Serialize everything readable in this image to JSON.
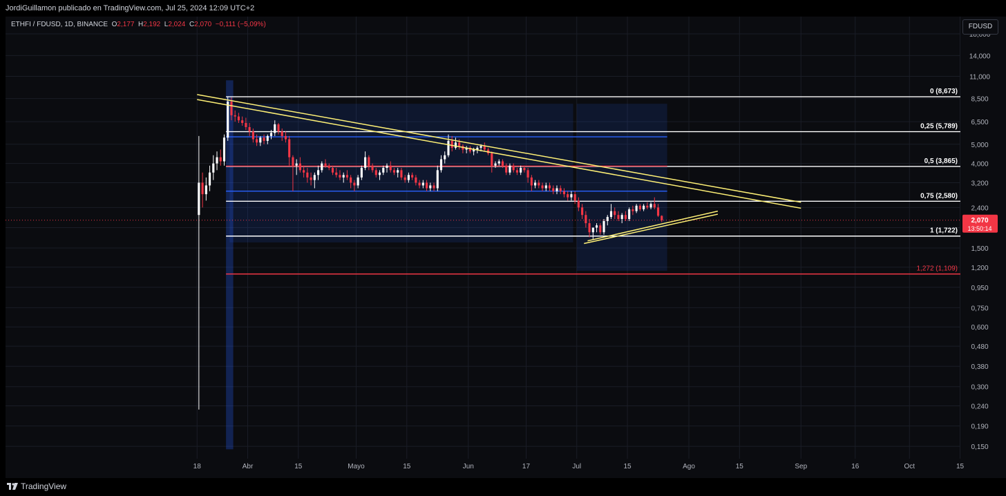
{
  "header": {
    "publisher": "JordiGuillamon publicado en TradingView.com, Jul 25, 2024 12:09 UTC+2"
  },
  "symbol": {
    "pair": "ETHFI / FDUSD, 1D, BINANCE",
    "open_label": "O",
    "open": "2,177",
    "high_label": "H",
    "high": "2,192",
    "low_label": "L",
    "low": "2,024",
    "close_label": "C",
    "close": "2,070",
    "change": "−0,111 (−5,09%)"
  },
  "currency_button": "FDUSD",
  "footer": {
    "brand": "TradingView"
  },
  "colors": {
    "up": "#ffffff",
    "down": "#f23645",
    "fib": "#ffffff",
    "fib_ext": "#f23645",
    "trend": "#fff176",
    "channel": "#2962ff",
    "price_line": "#f23645"
  },
  "chart_data": {
    "type": "candlestick",
    "y_scale": "log",
    "ylim": [
      0.13,
      22
    ],
    "y_ticks": [
      "18,000",
      "14,000",
      "11,000",
      "8,500",
      "6,500",
      "5,000",
      "4,000",
      "3,200",
      "2,400",
      "1,900",
      "1,500",
      "1,200",
      "0,950",
      "0,750",
      "0,600",
      "0,480",
      "0,380",
      "0,300",
      "0,240",
      "0,190",
      "0,150"
    ],
    "y_tick_values": [
      18,
      14,
      11,
      8.5,
      6.5,
      5,
      4,
      3.2,
      2.4,
      1.9,
      1.5,
      1.2,
      0.95,
      0.75,
      0.6,
      0.48,
      0.38,
      0.3,
      0.24,
      0.19,
      0.15
    ],
    "x_range": [
      "2024-03-17",
      "2024-10-17"
    ],
    "x_ticks": [
      {
        "label": "18",
        "date": "2024-03-18"
      },
      {
        "label": "Abr",
        "date": "2024-04-01"
      },
      {
        "label": "15",
        "date": "2024-04-15"
      },
      {
        "label": "Mayo",
        "date": "2024-05-01"
      },
      {
        "label": "15",
        "date": "2024-05-15"
      },
      {
        "label": "Jun",
        "date": "2024-06-01"
      },
      {
        "label": "17",
        "date": "2024-06-17"
      },
      {
        "label": "Jul",
        "date": "2024-07-01"
      },
      {
        "label": "15",
        "date": "2024-07-15"
      },
      {
        "label": "Ago",
        "date": "2024-08-01"
      },
      {
        "label": "15",
        "date": "2024-08-15"
      },
      {
        "label": "Sep",
        "date": "2024-09-01"
      },
      {
        "label": "16",
        "date": "2024-09-16"
      },
      {
        "label": "Oct",
        "date": "2024-10-01"
      },
      {
        "label": "15",
        "date": "2024-10-15"
      }
    ],
    "current_price": "2,070",
    "countdown": "13:50:14",
    "fib_levels": [
      {
        "label": "0 (8,673)",
        "value": 8.673
      },
      {
        "label": "0,25 (5,789)",
        "value": 5.789
      },
      {
        "label": "0,5 (3,865)",
        "value": 3.865
      },
      {
        "label": "0,75 (2,580)",
        "value": 2.58
      },
      {
        "label": "1 (1,722)",
        "value": 1.722
      },
      {
        "label": "1,272 (1,109)",
        "value": 1.109,
        "ext": true
      }
    ],
    "candles": [
      {
        "d": "2024-03-18",
        "o": 2.2,
        "h": 5.5,
        "l": 0.23,
        "c": 3.2
      },
      {
        "d": "2024-03-19",
        "o": 3.2,
        "h": 3.6,
        "l": 2.4,
        "c": 2.8
      },
      {
        "d": "2024-03-20",
        "o": 2.8,
        "h": 3.4,
        "l": 2.6,
        "c": 3.1
      },
      {
        "d": "2024-03-21",
        "o": 3.1,
        "h": 3.9,
        "l": 2.9,
        "c": 3.6
      },
      {
        "d": "2024-03-22",
        "o": 3.6,
        "h": 4.4,
        "l": 3.3,
        "c": 4.0
      },
      {
        "d": "2024-03-23",
        "o": 4.0,
        "h": 4.6,
        "l": 3.7,
        "c": 4.3
      },
      {
        "d": "2024-03-24",
        "o": 4.3,
        "h": 4.7,
        "l": 3.9,
        "c": 4.1
      },
      {
        "d": "2024-03-25",
        "o": 4.1,
        "h": 5.6,
        "l": 3.9,
        "c": 5.4
      },
      {
        "d": "2024-03-26",
        "o": 5.4,
        "h": 8.7,
        "l": 5.2,
        "c": 8.2
      },
      {
        "d": "2024-03-27",
        "o": 8.2,
        "h": 8.6,
        "l": 6.6,
        "c": 7.0
      },
      {
        "d": "2024-03-28",
        "o": 7.0,
        "h": 7.4,
        "l": 6.5,
        "c": 6.9
      },
      {
        "d": "2024-03-29",
        "o": 6.9,
        "h": 7.2,
        "l": 6.4,
        "c": 6.6
      },
      {
        "d": "2024-03-30",
        "o": 6.6,
        "h": 6.9,
        "l": 6.2,
        "c": 6.4
      },
      {
        "d": "2024-03-31",
        "o": 6.4,
        "h": 6.8,
        "l": 5.9,
        "c": 6.1
      },
      {
        "d": "2024-04-01",
        "o": 6.1,
        "h": 6.4,
        "l": 5.5,
        "c": 5.8
      },
      {
        "d": "2024-04-02",
        "o": 5.8,
        "h": 6.0,
        "l": 5.1,
        "c": 5.3
      },
      {
        "d": "2024-04-03",
        "o": 5.3,
        "h": 5.6,
        "l": 4.9,
        "c": 5.1
      },
      {
        "d": "2024-04-04",
        "o": 5.1,
        "h": 5.5,
        "l": 4.9,
        "c": 5.4
      },
      {
        "d": "2024-04-05",
        "o": 5.4,
        "h": 5.6,
        "l": 5.0,
        "c": 5.2
      },
      {
        "d": "2024-04-06",
        "o": 5.2,
        "h": 5.6,
        "l": 5.0,
        "c": 5.5
      },
      {
        "d": "2024-04-07",
        "o": 5.5,
        "h": 5.9,
        "l": 5.3,
        "c": 5.7
      },
      {
        "d": "2024-04-08",
        "o": 5.7,
        "h": 6.6,
        "l": 5.5,
        "c": 6.3
      },
      {
        "d": "2024-04-09",
        "o": 6.3,
        "h": 6.4,
        "l": 5.6,
        "c": 5.8
      },
      {
        "d": "2024-04-10",
        "o": 5.8,
        "h": 6.0,
        "l": 5.2,
        "c": 5.5
      },
      {
        "d": "2024-04-11",
        "o": 5.5,
        "h": 5.8,
        "l": 5.1,
        "c": 5.3
      },
      {
        "d": "2024-04-12",
        "o": 5.3,
        "h": 5.5,
        "l": 3.9,
        "c": 4.3
      },
      {
        "d": "2024-04-13",
        "o": 4.3,
        "h": 4.4,
        "l": 2.9,
        "c": 3.9
      },
      {
        "d": "2024-04-14",
        "o": 3.9,
        "h": 4.2,
        "l": 3.5,
        "c": 4.0
      },
      {
        "d": "2024-04-15",
        "o": 4.0,
        "h": 4.3,
        "l": 3.6,
        "c": 3.7
      },
      {
        "d": "2024-04-16",
        "o": 3.7,
        "h": 3.9,
        "l": 3.4,
        "c": 3.6
      },
      {
        "d": "2024-04-17",
        "o": 3.6,
        "h": 3.8,
        "l": 3.2,
        "c": 3.4
      },
      {
        "d": "2024-04-18",
        "o": 3.4,
        "h": 3.6,
        "l": 3.1,
        "c": 3.3
      },
      {
        "d": "2024-04-19",
        "o": 3.3,
        "h": 3.6,
        "l": 3.0,
        "c": 3.5
      },
      {
        "d": "2024-04-20",
        "o": 3.5,
        "h": 3.9,
        "l": 3.3,
        "c": 3.7
      },
      {
        "d": "2024-04-21",
        "o": 3.7,
        "h": 4.1,
        "l": 3.6,
        "c": 4.0
      },
      {
        "d": "2024-04-22",
        "o": 4.0,
        "h": 4.2,
        "l": 3.8,
        "c": 3.9
      },
      {
        "d": "2024-04-23",
        "o": 3.9,
        "h": 4.0,
        "l": 3.7,
        "c": 3.8
      },
      {
        "d": "2024-04-24",
        "o": 3.8,
        "h": 3.9,
        "l": 3.5,
        "c": 3.6
      },
      {
        "d": "2024-04-25",
        "o": 3.6,
        "h": 3.8,
        "l": 3.4,
        "c": 3.5
      },
      {
        "d": "2024-04-26",
        "o": 3.5,
        "h": 3.7,
        "l": 3.3,
        "c": 3.4
      },
      {
        "d": "2024-04-27",
        "o": 3.4,
        "h": 3.6,
        "l": 3.2,
        "c": 3.5
      },
      {
        "d": "2024-04-28",
        "o": 3.5,
        "h": 3.7,
        "l": 3.3,
        "c": 3.4
      },
      {
        "d": "2024-04-29",
        "o": 3.4,
        "h": 3.5,
        "l": 3.0,
        "c": 3.2
      },
      {
        "d": "2024-04-30",
        "o": 3.2,
        "h": 3.3,
        "l": 2.9,
        "c": 3.1
      },
      {
        "d": "2024-05-01",
        "o": 3.1,
        "h": 3.5,
        "l": 3.0,
        "c": 3.4
      },
      {
        "d": "2024-05-02",
        "o": 3.4,
        "h": 3.9,
        "l": 3.3,
        "c": 3.8
      },
      {
        "d": "2024-05-03",
        "o": 3.8,
        "h": 4.6,
        "l": 3.7,
        "c": 4.3
      },
      {
        "d": "2024-05-04",
        "o": 4.3,
        "h": 4.4,
        "l": 3.7,
        "c": 3.9
      },
      {
        "d": "2024-05-05",
        "o": 3.9,
        "h": 4.0,
        "l": 3.6,
        "c": 3.7
      },
      {
        "d": "2024-05-06",
        "o": 3.7,
        "h": 3.8,
        "l": 3.4,
        "c": 3.5
      },
      {
        "d": "2024-05-07",
        "o": 3.5,
        "h": 3.7,
        "l": 3.3,
        "c": 3.6
      },
      {
        "d": "2024-05-08",
        "o": 3.6,
        "h": 3.9,
        "l": 3.5,
        "c": 3.8
      },
      {
        "d": "2024-05-09",
        "o": 3.8,
        "h": 4.0,
        "l": 3.6,
        "c": 3.9
      },
      {
        "d": "2024-05-10",
        "o": 3.9,
        "h": 4.1,
        "l": 3.6,
        "c": 3.7
      },
      {
        "d": "2024-05-11",
        "o": 3.7,
        "h": 3.8,
        "l": 3.5,
        "c": 3.6
      },
      {
        "d": "2024-05-12",
        "o": 3.6,
        "h": 3.8,
        "l": 3.4,
        "c": 3.7
      },
      {
        "d": "2024-05-13",
        "o": 3.7,
        "h": 3.8,
        "l": 3.3,
        "c": 3.4
      },
      {
        "d": "2024-05-14",
        "o": 3.4,
        "h": 3.5,
        "l": 3.2,
        "c": 3.3
      },
      {
        "d": "2024-05-15",
        "o": 3.3,
        "h": 3.6,
        "l": 3.2,
        "c": 3.5
      },
      {
        "d": "2024-05-16",
        "o": 3.5,
        "h": 3.6,
        "l": 3.3,
        "c": 3.4
      },
      {
        "d": "2024-05-17",
        "o": 3.4,
        "h": 3.5,
        "l": 3.1,
        "c": 3.2
      },
      {
        "d": "2024-05-18",
        "o": 3.2,
        "h": 3.3,
        "l": 3.0,
        "c": 3.1
      },
      {
        "d": "2024-05-19",
        "o": 3.1,
        "h": 3.3,
        "l": 3.0,
        "c": 3.2
      },
      {
        "d": "2024-05-20",
        "o": 3.2,
        "h": 3.3,
        "l": 2.9,
        "c": 3.0
      },
      {
        "d": "2024-05-21",
        "o": 3.0,
        "h": 3.2,
        "l": 2.9,
        "c": 3.1
      },
      {
        "d": "2024-05-22",
        "o": 3.1,
        "h": 3.2,
        "l": 2.9,
        "c": 3.0
      },
      {
        "d": "2024-05-23",
        "o": 3.0,
        "h": 3.9,
        "l": 2.9,
        "c": 3.7
      },
      {
        "d": "2024-05-24",
        "o": 3.7,
        "h": 4.4,
        "l": 3.6,
        "c": 4.2
      },
      {
        "d": "2024-05-25",
        "o": 4.2,
        "h": 4.6,
        "l": 4.0,
        "c": 4.4
      },
      {
        "d": "2024-05-26",
        "o": 4.4,
        "h": 5.6,
        "l": 4.3,
        "c": 5.2
      },
      {
        "d": "2024-05-27",
        "o": 5.2,
        "h": 5.5,
        "l": 4.6,
        "c": 4.8
      },
      {
        "d": "2024-05-28",
        "o": 4.8,
        "h": 5.4,
        "l": 4.7,
        "c": 5.1
      },
      {
        "d": "2024-05-29",
        "o": 5.1,
        "h": 5.3,
        "l": 4.7,
        "c": 4.9
      },
      {
        "d": "2024-05-30",
        "o": 4.9,
        "h": 5.0,
        "l": 4.5,
        "c": 4.7
      },
      {
        "d": "2024-05-31",
        "o": 4.7,
        "h": 4.9,
        "l": 4.5,
        "c": 4.8
      },
      {
        "d": "2024-06-01",
        "o": 4.8,
        "h": 4.9,
        "l": 4.5,
        "c": 4.6
      },
      {
        "d": "2024-06-02",
        "o": 4.6,
        "h": 4.8,
        "l": 4.4,
        "c": 4.7
      },
      {
        "d": "2024-06-03",
        "o": 4.7,
        "h": 4.9,
        "l": 4.5,
        "c": 4.8
      },
      {
        "d": "2024-06-04",
        "o": 4.8,
        "h": 5.0,
        "l": 4.6,
        "c": 4.9
      },
      {
        "d": "2024-06-05",
        "o": 4.9,
        "h": 5.1,
        "l": 4.6,
        "c": 4.7
      },
      {
        "d": "2024-06-06",
        "o": 4.7,
        "h": 4.8,
        "l": 4.4,
        "c": 4.5
      },
      {
        "d": "2024-06-07",
        "o": 4.5,
        "h": 4.6,
        "l": 3.6,
        "c": 3.9
      },
      {
        "d": "2024-06-08",
        "o": 3.9,
        "h": 4.1,
        "l": 3.8,
        "c": 4.0
      },
      {
        "d": "2024-06-09",
        "o": 4.0,
        "h": 4.2,
        "l": 3.9,
        "c": 4.1
      },
      {
        "d": "2024-06-10",
        "o": 4.1,
        "h": 4.2,
        "l": 3.8,
        "c": 3.9
      },
      {
        "d": "2024-06-11",
        "o": 3.9,
        "h": 4.0,
        "l": 3.5,
        "c": 3.6
      },
      {
        "d": "2024-06-12",
        "o": 3.6,
        "h": 4.0,
        "l": 3.5,
        "c": 3.9
      },
      {
        "d": "2024-06-13",
        "o": 3.9,
        "h": 4.0,
        "l": 3.6,
        "c": 3.7
      },
      {
        "d": "2024-06-14",
        "o": 3.7,
        "h": 3.8,
        "l": 3.5,
        "c": 3.6
      },
      {
        "d": "2024-06-15",
        "o": 3.6,
        "h": 3.9,
        "l": 3.5,
        "c": 3.8
      },
      {
        "d": "2024-06-16",
        "o": 3.8,
        "h": 3.9,
        "l": 3.6,
        "c": 3.7
      },
      {
        "d": "2024-06-17",
        "o": 3.7,
        "h": 3.8,
        "l": 3.2,
        "c": 3.4
      },
      {
        "d": "2024-06-18",
        "o": 3.4,
        "h": 3.5,
        "l": 2.9,
        "c": 3.1
      },
      {
        "d": "2024-06-19",
        "o": 3.1,
        "h": 3.3,
        "l": 3.0,
        "c": 3.2
      },
      {
        "d": "2024-06-20",
        "o": 3.2,
        "h": 3.3,
        "l": 3.0,
        "c": 3.1
      },
      {
        "d": "2024-06-21",
        "o": 3.1,
        "h": 3.2,
        "l": 2.9,
        "c": 3.0
      },
      {
        "d": "2024-06-22",
        "o": 3.0,
        "h": 3.2,
        "l": 2.9,
        "c": 3.1
      },
      {
        "d": "2024-06-23",
        "o": 3.1,
        "h": 3.2,
        "l": 2.9,
        "c": 3.0
      },
      {
        "d": "2024-06-24",
        "o": 3.0,
        "h": 3.1,
        "l": 2.8,
        "c": 2.9
      },
      {
        "d": "2024-06-25",
        "o": 2.9,
        "h": 3.1,
        "l": 2.8,
        "c": 3.0
      },
      {
        "d": "2024-06-26",
        "o": 3.0,
        "h": 3.1,
        "l": 2.8,
        "c": 2.9
      },
      {
        "d": "2024-06-27",
        "o": 2.9,
        "h": 3.0,
        "l": 2.7,
        "c": 2.8
      },
      {
        "d": "2024-06-28",
        "o": 2.8,
        "h": 2.9,
        "l": 2.6,
        "c": 2.7
      },
      {
        "d": "2024-06-29",
        "o": 2.7,
        "h": 2.9,
        "l": 2.6,
        "c": 2.8
      },
      {
        "d": "2024-06-30",
        "o": 2.8,
        "h": 2.9,
        "l": 2.5,
        "c": 2.6
      },
      {
        "d": "2024-07-01",
        "o": 2.6,
        "h": 2.7,
        "l": 2.3,
        "c": 2.4
      },
      {
        "d": "2024-07-02",
        "o": 2.4,
        "h": 2.5,
        "l": 2.1,
        "c": 2.2
      },
      {
        "d": "2024-07-03",
        "o": 2.2,
        "h": 2.3,
        "l": 1.9,
        "c": 2.0
      },
      {
        "d": "2024-07-04",
        "o": 2.0,
        "h": 2.1,
        "l": 1.7,
        "c": 1.8
      },
      {
        "d": "2024-07-05",
        "o": 1.8,
        "h": 1.9,
        "l": 1.65,
        "c": 1.9
      },
      {
        "d": "2024-07-06",
        "o": 1.9,
        "h": 2.0,
        "l": 1.8,
        "c": 1.95
      },
      {
        "d": "2024-07-07",
        "o": 1.95,
        "h": 2.0,
        "l": 1.75,
        "c": 1.8
      },
      {
        "d": "2024-07-08",
        "o": 1.8,
        "h": 2.1,
        "l": 1.75,
        "c": 2.05
      },
      {
        "d": "2024-07-09",
        "o": 2.05,
        "h": 2.2,
        "l": 1.95,
        "c": 2.15
      },
      {
        "d": "2024-07-10",
        "o": 2.15,
        "h": 2.5,
        "l": 2.1,
        "c": 2.3
      },
      {
        "d": "2024-07-11",
        "o": 2.3,
        "h": 2.4,
        "l": 2.1,
        "c": 2.2
      },
      {
        "d": "2024-07-12",
        "o": 2.2,
        "h": 2.3,
        "l": 2.05,
        "c": 2.1
      },
      {
        "d": "2024-07-13",
        "o": 2.1,
        "h": 2.25,
        "l": 2.0,
        "c": 2.2
      },
      {
        "d": "2024-07-14",
        "o": 2.2,
        "h": 2.3,
        "l": 2.05,
        "c": 2.1
      },
      {
        "d": "2024-07-15",
        "o": 2.1,
        "h": 2.4,
        "l": 2.05,
        "c": 2.35
      },
      {
        "d": "2024-07-16",
        "o": 2.35,
        "h": 2.45,
        "l": 2.2,
        "c": 2.3
      },
      {
        "d": "2024-07-17",
        "o": 2.3,
        "h": 2.5,
        "l": 2.25,
        "c": 2.45
      },
      {
        "d": "2024-07-18",
        "o": 2.45,
        "h": 2.5,
        "l": 2.3,
        "c": 2.35
      },
      {
        "d": "2024-07-19",
        "o": 2.35,
        "h": 2.5,
        "l": 2.3,
        "c": 2.45
      },
      {
        "d": "2024-07-20",
        "o": 2.45,
        "h": 2.55,
        "l": 2.35,
        "c": 2.4
      },
      {
        "d": "2024-07-21",
        "o": 2.4,
        "h": 2.55,
        "l": 2.35,
        "c": 2.5
      },
      {
        "d": "2024-07-22",
        "o": 2.5,
        "h": 2.7,
        "l": 2.35,
        "c": 2.4
      },
      {
        "d": "2024-07-23",
        "o": 2.4,
        "h": 2.5,
        "l": 2.15,
        "c": 2.18
      },
      {
        "d": "2024-07-24",
        "o": 2.177,
        "h": 2.192,
        "l": 2.024,
        "c": 2.07
      }
    ],
    "trendlines": [
      {
        "from": {
          "d": "2024-03-18",
          "v": 8.9
        },
        "to": {
          "d": "2024-09-01",
          "v": 2.55
        },
        "color": "#fff176"
      },
      {
        "from": {
          "d": "2024-03-18",
          "v": 8.4
        },
        "to": {
          "d": "2024-09-01",
          "v": 2.38
        },
        "color": "#fff176"
      },
      {
        "from": {
          "d": "2024-07-04",
          "v": 1.63
        },
        "to": {
          "d": "2024-08-09",
          "v": 2.3
        },
        "color": "#fff176"
      },
      {
        "from": {
          "d": "2024-07-03",
          "v": 1.58
        },
        "to": {
          "d": "2024-08-09",
          "v": 2.22
        },
        "color": "#fff176"
      }
    ],
    "horizontal_lines": [
      {
        "from": "2024-03-26",
        "to": "2024-07-26",
        "v": 5.45,
        "color": "#2962ff"
      },
      {
        "from": "2024-03-26",
        "to": "2024-07-26",
        "v": 2.9,
        "color": "#2962ff"
      },
      {
        "from": "2024-03-26",
        "to": "2024-07-26",
        "v": 3.88,
        "color": "#f23645"
      }
    ]
  }
}
